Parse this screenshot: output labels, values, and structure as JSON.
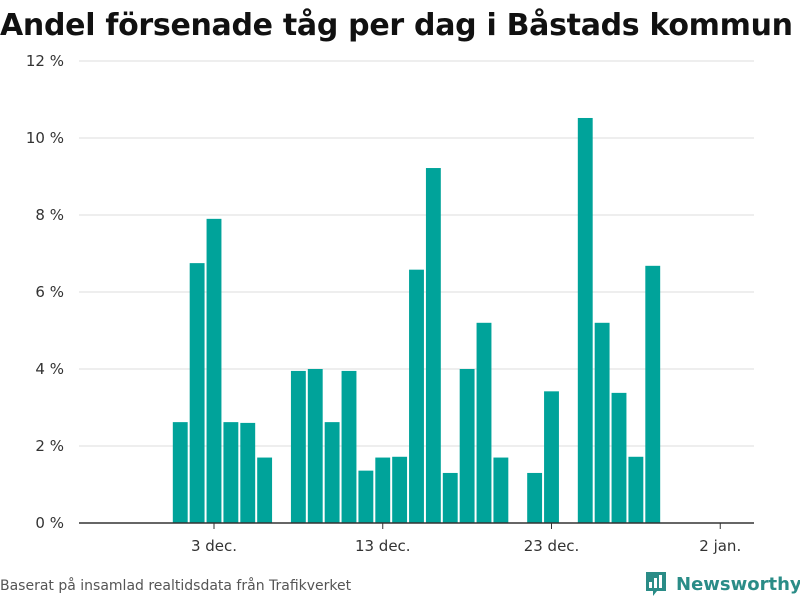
{
  "title": "Andel försenade tåg per dag i Båstads kommun",
  "source": "Baserat på insamlad realtidsdata från Trafikverket",
  "brand": {
    "name": "Newsworthy",
    "icon": "bar-chart-icon",
    "color": "#2a8c87"
  },
  "colors": {
    "bar": "#00a39a",
    "grid": "#dddddd",
    "axis": "#333333"
  },
  "chart_data": {
    "type": "bar",
    "x_start": "2023-11-25",
    "x_end": "2024-01-04",
    "x_ticks": [
      {
        "date": "2023-12-03",
        "label": "3 dec."
      },
      {
        "date": "2023-12-13",
        "label": "13 dec."
      },
      {
        "date": "2023-12-23",
        "label": "23 dec."
      },
      {
        "date": "2024-01-02",
        "label": "2 jan."
      }
    ],
    "y_ticks": [
      {
        "value": 0,
        "label": "0 %"
      },
      {
        "value": 2,
        "label": "2 %"
      },
      {
        "value": 4,
        "label": "4 %"
      },
      {
        "value": 6,
        "label": "6 %"
      },
      {
        "value": 8,
        "label": "8 %"
      },
      {
        "value": 10,
        "label": "10 %"
      },
      {
        "value": 12,
        "label": "12 %"
      }
    ],
    "ylim": [
      0,
      12
    ],
    "grid": true,
    "points": [
      {
        "date": "2023-12-01",
        "value": 2.62
      },
      {
        "date": "2023-12-02",
        "value": 6.75
      },
      {
        "date": "2023-12-03",
        "value": 7.9
      },
      {
        "date": "2023-12-04",
        "value": 2.62
      },
      {
        "date": "2023-12-05",
        "value": 2.6
      },
      {
        "date": "2023-12-06",
        "value": 1.7
      },
      {
        "date": "2023-12-08",
        "value": 3.95
      },
      {
        "date": "2023-12-09",
        "value": 4.0
      },
      {
        "date": "2023-12-10",
        "value": 2.62
      },
      {
        "date": "2023-12-11",
        "value": 3.95
      },
      {
        "date": "2023-12-12",
        "value": 1.36
      },
      {
        "date": "2023-12-13",
        "value": 1.7
      },
      {
        "date": "2023-12-14",
        "value": 1.72
      },
      {
        "date": "2023-12-15",
        "value": 6.58
      },
      {
        "date": "2023-12-16",
        "value": 9.22
      },
      {
        "date": "2023-12-17",
        "value": 1.3
      },
      {
        "date": "2023-12-18",
        "value": 4.0
      },
      {
        "date": "2023-12-19",
        "value": 5.2
      },
      {
        "date": "2023-12-20",
        "value": 1.7
      },
      {
        "date": "2023-12-22",
        "value": 1.3
      },
      {
        "date": "2023-12-23",
        "value": 3.42
      },
      {
        "date": "2023-12-25",
        "value": 10.52
      },
      {
        "date": "2023-12-26",
        "value": 5.2
      },
      {
        "date": "2023-12-27",
        "value": 3.38
      },
      {
        "date": "2023-12-28",
        "value": 1.72
      },
      {
        "date": "2023-12-29",
        "value": 6.68
      }
    ]
  }
}
